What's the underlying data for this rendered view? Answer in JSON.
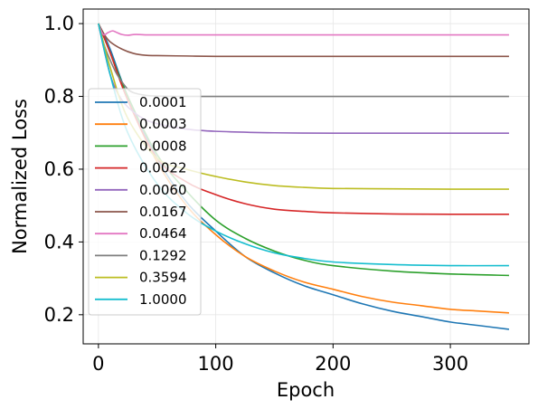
{
  "chart_data": {
    "type": "line",
    "xlabel": "Epoch",
    "ylabel": "Normalized Loss",
    "xlim": [
      -13,
      367
    ],
    "ylim": [
      0.12,
      1.04
    ],
    "xticks": [
      0,
      100,
      200,
      300
    ],
    "yticks": [
      0.2,
      0.4,
      0.6,
      0.8,
      1.0
    ],
    "xtick_labels": [
      "0",
      "100",
      "200",
      "300"
    ],
    "ytick_labels": [
      "0.2",
      "0.4",
      "0.6",
      "0.8",
      "1.0"
    ],
    "grid": true,
    "legend_position": "center-left",
    "series": [
      {
        "name": "0.0001",
        "color": "#1f77b4",
        "x": [
          0,
          10,
          25,
          50,
          75,
          100,
          125,
          150,
          175,
          200,
          225,
          250,
          275,
          300,
          325,
          350
        ],
        "y": [
          1.0,
          0.93,
          0.8,
          0.63,
          0.51,
          0.43,
          0.36,
          0.315,
          0.28,
          0.255,
          0.23,
          0.21,
          0.195,
          0.18,
          0.17,
          0.16
        ]
      },
      {
        "name": "0.0003",
        "color": "#ff7f0e",
        "x": [
          0,
          10,
          25,
          50,
          75,
          100,
          125,
          150,
          175,
          200,
          225,
          250,
          275,
          300,
          325,
          350
        ],
        "y": [
          1.0,
          0.92,
          0.79,
          0.62,
          0.5,
          0.42,
          0.36,
          0.32,
          0.29,
          0.27,
          0.25,
          0.235,
          0.225,
          0.215,
          0.21,
          0.205
        ]
      },
      {
        "name": "0.0008",
        "color": "#2ca02c",
        "x": [
          0,
          10,
          25,
          50,
          75,
          100,
          125,
          150,
          175,
          200,
          250,
          300,
          350
        ],
        "y": [
          1.0,
          0.92,
          0.8,
          0.64,
          0.54,
          0.46,
          0.41,
          0.375,
          0.35,
          0.335,
          0.32,
          0.312,
          0.308
        ]
      },
      {
        "name": "0.0022",
        "color": "#d62728",
        "x": [
          0,
          10,
          25,
          50,
          75,
          100,
          125,
          150,
          175,
          200,
          250,
          300,
          350
        ],
        "y": [
          1.0,
          0.92,
          0.79,
          0.63,
          0.565,
          0.53,
          0.505,
          0.49,
          0.484,
          0.48,
          0.477,
          0.476,
          0.476
        ]
      },
      {
        "name": "0.0060",
        "color": "#9467bd",
        "x": [
          0,
          10,
          20,
          35,
          50,
          75,
          100,
          150,
          200,
          250,
          300,
          350
        ],
        "y": [
          1.0,
          0.86,
          0.79,
          0.745,
          0.725,
          0.71,
          0.704,
          0.7,
          0.699,
          0.699,
          0.699,
          0.699
        ]
      },
      {
        "name": "0.0167",
        "color": "#8c564b",
        "x": [
          0,
          5,
          10,
          20,
          30,
          40,
          50,
          75,
          100,
          150,
          200,
          250,
          300,
          350
        ],
        "y": [
          1.0,
          0.97,
          0.95,
          0.93,
          0.918,
          0.913,
          0.912,
          0.911,
          0.91,
          0.91,
          0.91,
          0.91,
          0.91,
          0.91
        ]
      },
      {
        "name": "0.0464",
        "color": "#e377c2",
        "x": [
          0,
          4,
          8,
          12,
          16,
          20,
          25,
          30,
          35,
          40,
          50,
          75,
          100,
          200,
          300,
          350
        ],
        "y": [
          1.0,
          0.97,
          0.975,
          0.98,
          0.975,
          0.97,
          0.968,
          0.97,
          0.97,
          0.969,
          0.969,
          0.969,
          0.969,
          0.969,
          0.969,
          0.969
        ]
      },
      {
        "name": "0.1292",
        "color": "#7f7f7f",
        "x": [
          0,
          5,
          10,
          15,
          20,
          25,
          30,
          40,
          50,
          75,
          100,
          200,
          300,
          350
        ],
        "y": [
          1.0,
          0.94,
          0.9,
          0.865,
          0.84,
          0.82,
          0.81,
          0.803,
          0.801,
          0.8,
          0.8,
          0.8,
          0.8,
          0.8
        ]
      },
      {
        "name": "0.3594",
        "color": "#bcbd22",
        "x": [
          0,
          10,
          25,
          50,
          75,
          100,
          125,
          150,
          175,
          200,
          250,
          300,
          350
        ],
        "y": [
          1.0,
          0.88,
          0.74,
          0.63,
          0.6,
          0.58,
          0.565,
          0.555,
          0.55,
          0.547,
          0.546,
          0.545,
          0.545
        ]
      },
      {
        "name": "1.0000",
        "color": "#17becf",
        "x": [
          0,
          10,
          25,
          50,
          75,
          100,
          125,
          150,
          175,
          200,
          250,
          300,
          350
        ],
        "y": [
          1.0,
          0.86,
          0.7,
          0.56,
          0.48,
          0.43,
          0.395,
          0.37,
          0.355,
          0.345,
          0.338,
          0.335,
          0.335
        ]
      }
    ]
  }
}
